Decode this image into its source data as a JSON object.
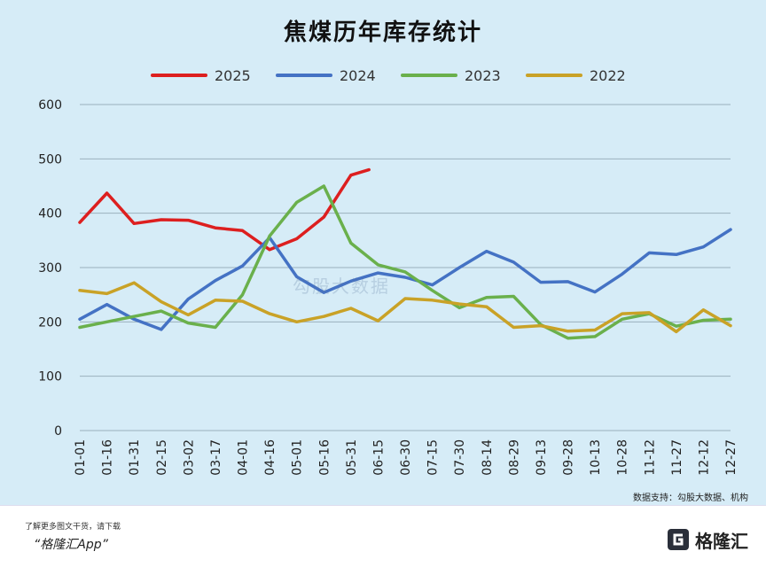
{
  "title": "焦煤历年库存统计",
  "source_note": "数据支持：勾股大数据、机构",
  "footer": {
    "note": "了解更多图文干货，请下载",
    "app": "“格隆汇App”",
    "brand": "格隆汇"
  },
  "watermark": {
    "left": "格隆汇",
    "right": "勾股大数据"
  },
  "colors": {
    "2025": "#dd1f1f",
    "2024": "#4472c4",
    "2023": "#6ab04c",
    "2022": "#c9a227"
  },
  "chart_data": {
    "type": "line",
    "title": "焦煤历年库存统计",
    "legend_position": "top",
    "grid": true,
    "ylim": [
      0,
      600
    ],
    "y_ticks": [
      "0",
      "100",
      "200",
      "300",
      "400",
      "500",
      "600"
    ],
    "x_tick_labels": [
      "01-01",
      "01-16",
      "01-31",
      "02-15",
      "03-02",
      "03-17",
      "04-01",
      "04-16",
      "05-01",
      "05-16",
      "05-31",
      "06-15",
      "06-30",
      "07-15",
      "07-30",
      "08-14",
      "08-29",
      "09-13",
      "09-28",
      "10-13",
      "10-28",
      "11-12",
      "11-27",
      "12-12",
      "12-27"
    ],
    "x_ticks": [
      0,
      15,
      30,
      45,
      60,
      75,
      90,
      105,
      120,
      135,
      150,
      165,
      180,
      195,
      210,
      225,
      240,
      255,
      270,
      285,
      300,
      315,
      330,
      345,
      360
    ],
    "xlim": [
      0,
      360
    ],
    "series": [
      {
        "name": "2025",
        "color": "#dd1f1f",
        "x": [
          0,
          15,
          30,
          45,
          60,
          75,
          90,
          105,
          120,
          135,
          150,
          160
        ],
        "y": [
          383,
          437,
          381,
          388,
          387,
          373,
          368,
          333,
          353,
          393,
          470,
          480
        ]
      },
      {
        "name": "2024",
        "color": "#4472c4",
        "x": [
          0,
          15,
          30,
          45,
          60,
          75,
          90,
          105,
          120,
          135,
          150,
          165,
          180,
          195,
          210,
          225,
          240,
          255,
          270,
          285,
          300,
          315,
          330,
          345,
          360
        ],
        "y": [
          205,
          232,
          205,
          186,
          242,
          276,
          303,
          355,
          283,
          254,
          275,
          290,
          282,
          268,
          300,
          330,
          310,
          273,
          274,
          255,
          288,
          327,
          324,
          338,
          370
        ]
      },
      {
        "name": "2023",
        "color": "#6ab04c",
        "x": [
          0,
          15,
          30,
          45,
          60,
          75,
          90,
          105,
          120,
          135,
          150,
          165,
          180,
          195,
          210,
          225,
          240,
          255,
          270,
          285,
          300,
          315,
          330,
          345,
          360
        ],
        "y": [
          190,
          200,
          210,
          220,
          198,
          190,
          250,
          358,
          420,
          450,
          345,
          305,
          292,
          258,
          226,
          245,
          247,
          195,
          170,
          173,
          205,
          215,
          192,
          203,
          205
        ]
      },
      {
        "name": "2022",
        "color": "#c9a227",
        "x": [
          0,
          15,
          30,
          45,
          60,
          75,
          90,
          105,
          120,
          135,
          150,
          165,
          180,
          195,
          210,
          225,
          240,
          255,
          270,
          285,
          300,
          315,
          330,
          345,
          360
        ],
        "y": [
          258,
          252,
          272,
          237,
          213,
          240,
          238,
          215,
          200,
          210,
          225,
          202,
          243,
          240,
          233,
          228,
          190,
          193,
          183,
          185,
          215,
          217,
          182,
          222,
          193
        ]
      }
    ]
  }
}
